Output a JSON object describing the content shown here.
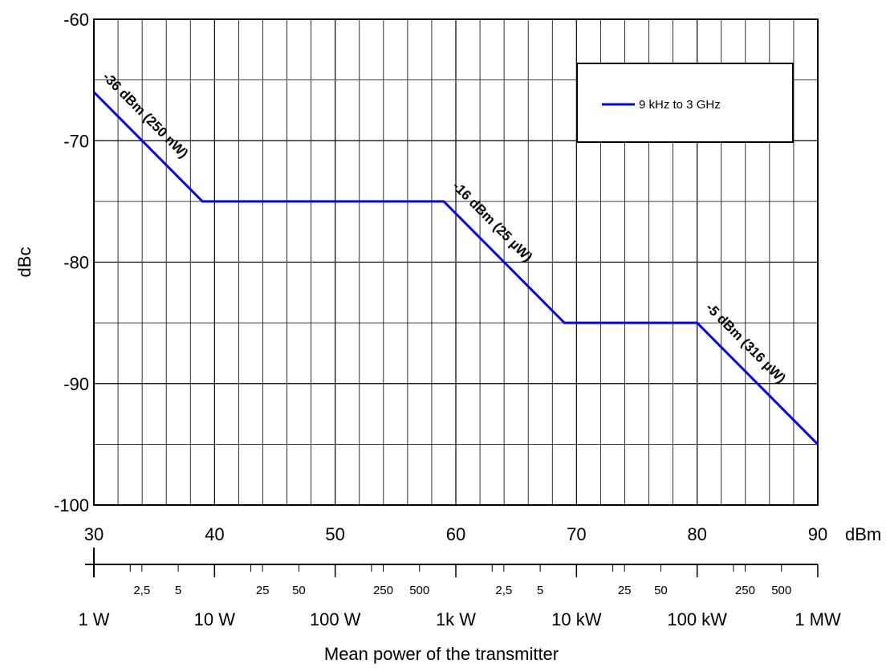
{
  "chart_data": {
    "type": "line",
    "ylabel": "dBc",
    "xlabel": "Mean power of the transmitter",
    "x_unit": "dBm",
    "xlim": [
      30,
      90
    ],
    "ylim": [
      -100,
      -60
    ],
    "grid": true,
    "legend_position": "top-right",
    "x_ticks": [
      "30",
      "40",
      "50",
      "60",
      "70",
      "80",
      "90"
    ],
    "y_ticks": [
      "-60",
      "-70",
      "-80",
      "-90",
      "-100"
    ],
    "power_scale_major": [
      {
        "dbm": 30,
        "label": "1 W"
      },
      {
        "dbm": 40,
        "label": "10 W"
      },
      {
        "dbm": 50,
        "label": "100 W"
      },
      {
        "dbm": 60,
        "label": "1k W"
      },
      {
        "dbm": 70,
        "label": "10 kW"
      },
      {
        "dbm": 80,
        "label": "100 kW"
      },
      {
        "dbm": 90,
        "label": "1 MW"
      }
    ],
    "power_scale_minor": [
      {
        "dbm": 33.98,
        "label": "2,5"
      },
      {
        "dbm": 36.99,
        "label": "5"
      },
      {
        "dbm": 43.98,
        "label": "25"
      },
      {
        "dbm": 46.99,
        "label": "50"
      },
      {
        "dbm": 53.98,
        "label": "250"
      },
      {
        "dbm": 56.99,
        "label": "500"
      },
      {
        "dbm": 63.98,
        "label": "2,5"
      },
      {
        "dbm": 66.99,
        "label": "5"
      },
      {
        "dbm": 73.98,
        "label": "25"
      },
      {
        "dbm": 76.99,
        "label": "50"
      },
      {
        "dbm": 83.98,
        "label": "250"
      },
      {
        "dbm": 86.99,
        "label": "500"
      }
    ],
    "series": [
      {
        "name": "9 kHz to 3 GHz",
        "color": "#0000ff",
        "x": [
          30,
          39,
          59,
          69,
          80,
          90
        ],
        "y": [
          -66,
          -75,
          -75,
          -85,
          -85,
          -95
        ]
      }
    ],
    "annotations": [
      {
        "text": "-36 dBm (250 nW)",
        "from": [
          30,
          -66
        ],
        "to": [
          39,
          -75
        ]
      },
      {
        "text": "-16 dBm (25 µW)",
        "from": [
          59,
          -75
        ],
        "to": [
          69,
          -85
        ]
      },
      {
        "text": "-5 dBm (316 µW)",
        "from": [
          80,
          -85
        ],
        "to": [
          90,
          -95
        ]
      }
    ]
  }
}
